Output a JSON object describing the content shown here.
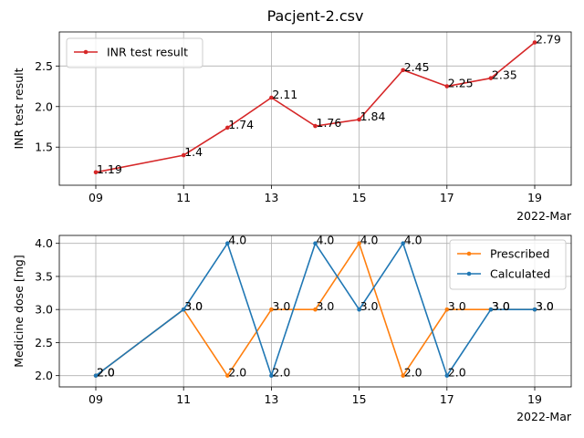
{
  "chart_data": [
    {
      "type": "line",
      "title": "Pacjent-2.csv",
      "xlabel": "",
      "ylabel": "INR test result",
      "x_offset_label": "2022-Mar",
      "x_dates": [
        "2022-03-09",
        "2022-03-11",
        "2022-03-12",
        "2022-03-13",
        "2022-03-14",
        "2022-03-15",
        "2022-03-16",
        "2022-03-17",
        "2022-03-18",
        "2022-03-19"
      ],
      "x_ticks": [
        "09",
        "11",
        "13",
        "15",
        "17",
        "19"
      ],
      "y_ticks": [
        "1.5",
        "2.0",
        "2.5"
      ],
      "ylim": [
        1.03,
        2.92
      ],
      "grid": true,
      "legend_position": "top-left",
      "series": [
        {
          "name": "INR test result",
          "color": "#d62728",
          "values": [
            1.19,
            1.4,
            1.74,
            2.11,
            1.76,
            1.84,
            2.45,
            2.25,
            2.35,
            2.79
          ],
          "labels": [
            "1.19",
            "1.4",
            "1.74",
            "2.11",
            "1.76",
            "1.84",
            "2.45",
            "2.25",
            "2.35",
            "2.79"
          ]
        }
      ]
    },
    {
      "type": "line",
      "title": "",
      "xlabel": "",
      "ylabel": "Medicine dose [mg]",
      "x_offset_label": "2022-Mar",
      "x_dates": [
        "2022-03-09",
        "2022-03-11",
        "2022-03-12",
        "2022-03-13",
        "2022-03-14",
        "2022-03-15",
        "2022-03-16",
        "2022-03-17",
        "2022-03-18",
        "2022-03-19"
      ],
      "x_ticks": [
        "09",
        "11",
        "13",
        "15",
        "17",
        "19"
      ],
      "y_ticks": [
        "2.0",
        "2.5",
        "3.0",
        "3.5",
        "4.0"
      ],
      "ylim": [
        1.83,
        4.12
      ],
      "grid": true,
      "legend_position": "top-right",
      "series": [
        {
          "name": "Prescribed",
          "color": "#ff7f0e",
          "values": [
            2.0,
            3.0,
            2.0,
            3.0,
            3.0,
            4.0,
            2.0,
            3.0,
            3.0,
            3.0
          ],
          "labels": [
            "2.0",
            "3.0",
            "2.0",
            "3.0",
            "3.0",
            "4.0",
            "2.0",
            "3.0",
            "3.0",
            "3.0"
          ]
        },
        {
          "name": "Calculated",
          "color": "#1f77b4",
          "values": [
            2.0,
            3.0,
            4.0,
            2.0,
            4.0,
            3.0,
            4.0,
            2.0,
            3.0,
            3.0
          ],
          "labels": [
            "2.0",
            "3.0",
            "4.0",
            "2.0",
            "4.0",
            "3.0",
            "4.0",
            "2.0",
            "3.0",
            "3.0"
          ]
        }
      ]
    }
  ]
}
